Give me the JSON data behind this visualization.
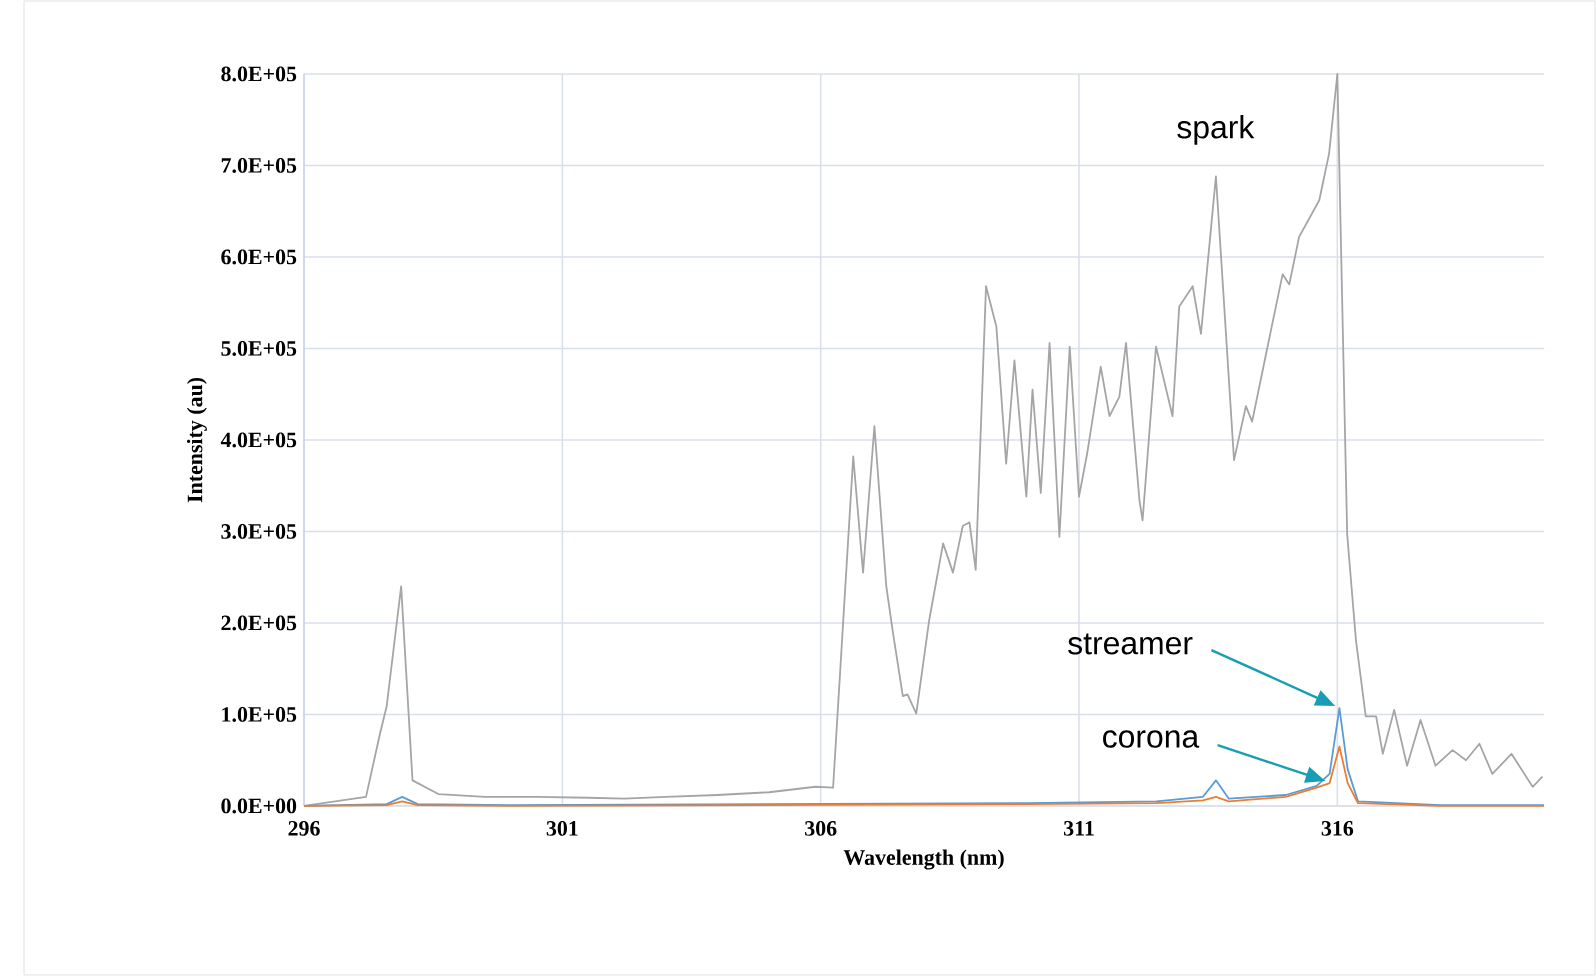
{
  "chart_data": {
    "type": "line",
    "xlabel": "Wavelength (nm)",
    "ylabel": "Intensity (au)",
    "xlim": [
      296,
      320
    ],
    "xticks": [
      296,
      301,
      306,
      311,
      316
    ],
    "ylim": [
      0,
      800000
    ],
    "yticks": [
      {
        "value": 0,
        "label": "0.0E+00"
      },
      {
        "value": 100000,
        "label": "1.0E+05"
      },
      {
        "value": 200000,
        "label": "2.0E+05"
      },
      {
        "value": 300000,
        "label": "3.0E+05"
      },
      {
        "value": 400000,
        "label": "4.0E+05"
      },
      {
        "value": 500000,
        "label": "5.0E+05"
      },
      {
        "value": 600000,
        "label": "6.0E+05"
      },
      {
        "value": 700000,
        "label": "7.0E+05"
      },
      {
        "value": 800000,
        "label": "8.0E+05"
      }
    ],
    "grid": true,
    "legend": false,
    "marker": "none",
    "line_style": "solid",
    "series": [
      {
        "name": "spark",
        "color": "#a5a5a5",
        "x": [
          296,
          297.2,
          297.47,
          297.6,
          297.88,
          298.1,
          298.6,
          299.5,
          300.5,
          301.5,
          302.2,
          303,
          304,
          305,
          305.9,
          306.24,
          306.63,
          306.82,
          307.04,
          307.27,
          307.4,
          307.59,
          307.68,
          307.85,
          308.1,
          308.37,
          308.56,
          308.75,
          308.88,
          309.0,
          309.2,
          309.4,
          309.59,
          309.75,
          309.98,
          310.1,
          310.26,
          310.43,
          310.62,
          310.82,
          311.0,
          311.16,
          311.42,
          311.59,
          311.78,
          311.91,
          312.17,
          312.23,
          312.49,
          312.81,
          312.94,
          313.2,
          313.36,
          313.65,
          314.0,
          314.23,
          314.35,
          314.62,
          314.94,
          315.07,
          315.26,
          315.65,
          315.84,
          316.0,
          316.19,
          316.36,
          316.55,
          316.75,
          316.88,
          317.1,
          317.35,
          317.61,
          317.9,
          318.23,
          318.49,
          318.75,
          319.0,
          319.37,
          319.78,
          319.97
        ],
        "values": [
          0,
          10000,
          79000,
          109000,
          240000,
          28000,
          13000,
          10000,
          10000,
          9000,
          8000,
          10000,
          12000,
          15000,
          21000,
          20000,
          382000,
          255000,
          415000,
          240000,
          189000,
          120000,
          122000,
          101000,
          203000,
          287000,
          255000,
          306000,
          310000,
          258000,
          568000,
          524000,
          374000,
          487000,
          338000,
          455000,
          342000,
          506000,
          294000,
          502000,
          338000,
          386000,
          480000,
          426000,
          447000,
          506000,
          334000,
          312000,
          502000,
          426000,
          546000,
          568000,
          516000,
          688000,
          378000,
          437000,
          420000,
          494000,
          581000,
          570000,
          622000,
          662000,
          713000,
          800000,
          297000,
          181000,
          98000,
          98000,
          57000,
          105000,
          44000,
          94000,
          44000,
          61000,
          50000,
          68000,
          35000,
          57000,
          21000,
          32000
        ]
      },
      {
        "name": "streamer",
        "color": "#5b9bd5",
        "x": [
          296,
          297.6,
          297.9,
          298.2,
          300,
          305,
          310,
          312.5,
          313.4,
          313.65,
          313.9,
          315,
          315.6,
          315.85,
          316.04,
          316.2,
          316.4,
          318,
          320
        ],
        "values": [
          0,
          2000,
          10000,
          2000,
          1000,
          2000,
          3000,
          5000,
          10000,
          28000,
          8000,
          12000,
          22000,
          35000,
          107000,
          40000,
          5000,
          1000,
          1000
        ]
      },
      {
        "name": "corona",
        "color": "#ed7d31",
        "x": [
          296,
          297.6,
          297.9,
          298.2,
          300,
          305,
          310,
          312.5,
          313.4,
          313.65,
          313.9,
          315,
          315.6,
          315.85,
          316.04,
          316.2,
          316.4,
          318,
          320
        ],
        "values": [
          0,
          1000,
          5000,
          1000,
          0,
          1000,
          2000,
          3000,
          6000,
          10000,
          5000,
          10000,
          20000,
          25000,
          65000,
          25000,
          3000,
          0,
          0
        ]
      }
    ]
  }
}
